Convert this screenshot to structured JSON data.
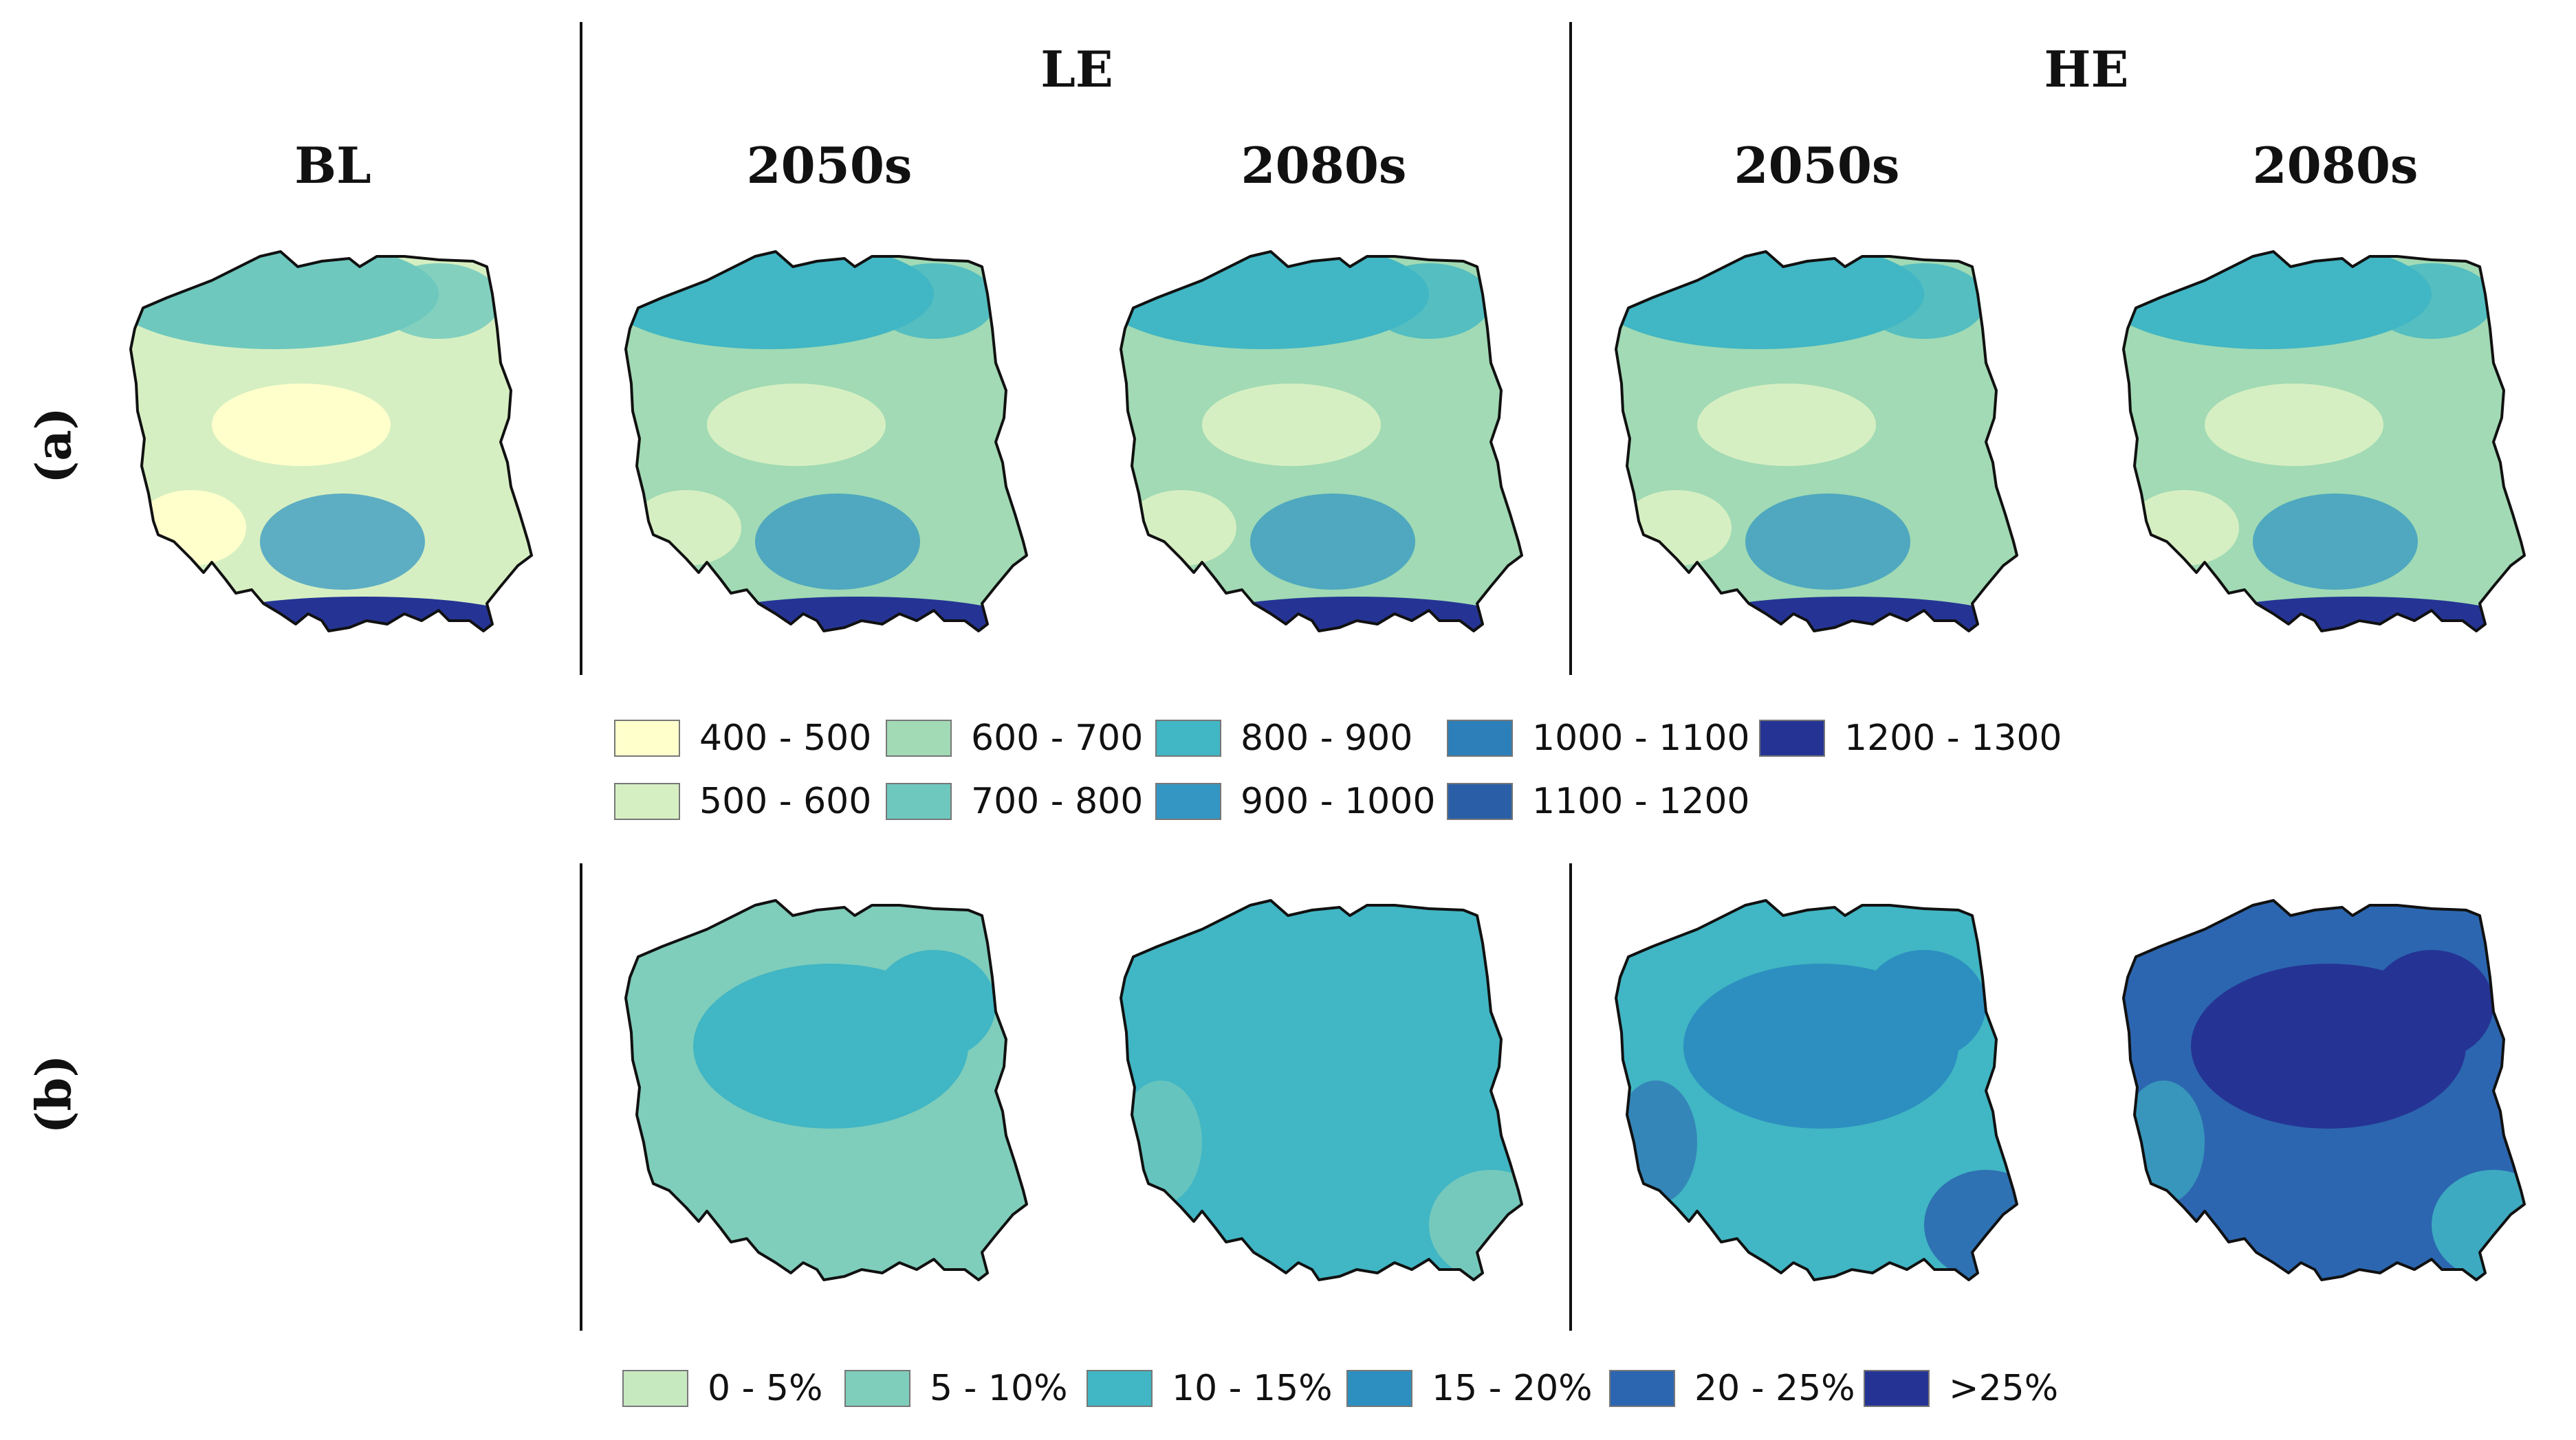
{
  "headers": {
    "bl": "BL",
    "le": "LE",
    "he": "HE",
    "le_2050": "2050s",
    "le_2080": "2080s",
    "he_2050": "2050s",
    "he_2080": "2080s"
  },
  "rows": {
    "a": "(a)",
    "b": "(b)"
  },
  "legend_a": [
    {
      "label": "400 - 500",
      "color": "#ffffcc"
    },
    {
      "label": "500 - 600",
      "color": "#d6efc2"
    },
    {
      "label": "600 - 700",
      "color": "#a1dab4"
    },
    {
      "label": "700 - 800",
      "color": "#6ec8be"
    },
    {
      "label": "800 - 900",
      "color": "#41b6c4"
    },
    {
      "label": "900 - 1000",
      "color": "#3497c3"
    },
    {
      "label": "1000 - 1100",
      "color": "#2c7fb8"
    },
    {
      "label": "1100 - 1200",
      "color": "#2a5fa8"
    },
    {
      "label": "1200 - 1300",
      "color": "#253494"
    }
  ],
  "legend_b": [
    {
      "label": "0 - 5%",
      "color": "#c7e9c0"
    },
    {
      "label": "5 - 10%",
      "color": "#7fcdbb"
    },
    {
      "label": "10 - 15%",
      "color": "#41b6c4"
    },
    {
      "label": "15 - 20%",
      "color": "#2c8fc0"
    },
    {
      "label": "20 - 25%",
      "color": "#2c66b0"
    },
    {
      "label": ">25%",
      "color": "#253494"
    }
  ],
  "maps_a": [
    {
      "panel": "BL",
      "base": "#d6efc2",
      "north": "#6ec8be",
      "center": "#ffffcc",
      "south": "#3497c3",
      "mountains": "#253494"
    },
    {
      "panel": "LE 2050s",
      "base": "#a1dab4",
      "north": "#41b6c4",
      "center": "#d6efc2",
      "south": "#3497c3",
      "mountains": "#253494"
    },
    {
      "panel": "LE 2080s",
      "base": "#a1dab4",
      "north": "#41b6c4",
      "center": "#d6efc2",
      "south": "#3497c3",
      "mountains": "#253494"
    },
    {
      "panel": "HE 2050s",
      "base": "#a1dab4",
      "north": "#41b6c4",
      "center": "#d6efc2",
      "south": "#3497c3",
      "mountains": "#253494"
    },
    {
      "panel": "HE 2080s",
      "base": "#a1dab4",
      "north": "#41b6c4",
      "center": "#d6efc2",
      "south": "#3497c3",
      "mountains": "#253494"
    }
  ],
  "maps_b": [
    {
      "panel": "LE 2050s",
      "base": "#7fcdbb",
      "patch": "#41b6c4",
      "edge": "#7fcdbb"
    },
    {
      "panel": "LE 2080s",
      "base": "#41b6c4",
      "patch": "#41b6c4",
      "edge": "#7fcdbb"
    },
    {
      "panel": "HE 2050s",
      "base": "#41b6c4",
      "patch": "#2c8fc0",
      "edge": "#2c66b0"
    },
    {
      "panel": "HE 2080s",
      "base": "#2c66b0",
      "patch": "#253494",
      "edge": "#41b6c4"
    }
  ]
}
